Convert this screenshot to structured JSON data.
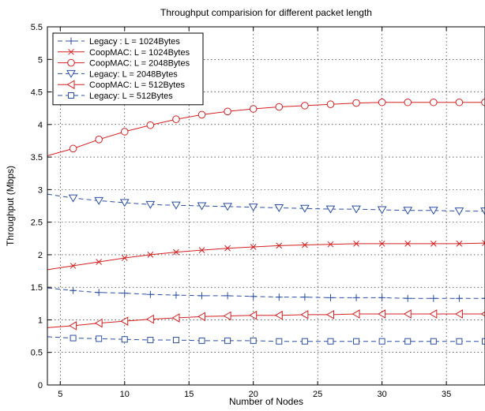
{
  "chart_data": {
    "type": "line",
    "title": "Throughput comparision for different packet length",
    "xlabel": "Number of Nodes",
    "ylabel": "Throughput (Mbps)",
    "xlim": [
      4,
      38
    ],
    "ylim": [
      0,
      5.5
    ],
    "xticks": [
      5,
      10,
      15,
      20,
      25,
      30,
      35
    ],
    "yticks": [
      0,
      0.5,
      1,
      1.5,
      2,
      2.5,
      3,
      3.5,
      4,
      4.5,
      5,
      5.5
    ],
    "grid": true,
    "legend_position": "top-left",
    "series": [
      {
        "name": "Legacy : L = 1024Bytes",
        "color": "#2a4ea3",
        "dash": "dashed",
        "marker": "plus",
        "x": [
          4,
          6,
          8,
          10,
          12,
          14,
          16,
          18,
          20,
          22,
          24,
          26,
          28,
          30,
          32,
          34,
          36,
          38
        ],
        "y": [
          1.49,
          1.45,
          1.42,
          1.41,
          1.39,
          1.38,
          1.37,
          1.37,
          1.36,
          1.35,
          1.35,
          1.34,
          1.34,
          1.34,
          1.33,
          1.33,
          1.33,
          1.33
        ]
      },
      {
        "name": "CoopMAC: L = 1024Bytes",
        "color": "#d42020",
        "dash": "solid",
        "marker": "x",
        "x": [
          4,
          6,
          8,
          10,
          12,
          14,
          16,
          18,
          20,
          22,
          24,
          26,
          28,
          30,
          32,
          34,
          36,
          38
        ],
        "y": [
          1.77,
          1.83,
          1.89,
          1.95,
          2.0,
          2.04,
          2.07,
          2.1,
          2.12,
          2.14,
          2.15,
          2.16,
          2.17,
          2.17,
          2.17,
          2.17,
          2.17,
          2.18
        ]
      },
      {
        "name": "CoopMAC: L = 2048Bytes",
        "color": "#d42020",
        "dash": "solid",
        "marker": "circle",
        "x": [
          4,
          6,
          8,
          10,
          12,
          14,
          16,
          18,
          20,
          22,
          24,
          26,
          28,
          30,
          32,
          34,
          36,
          38
        ],
        "y": [
          3.52,
          3.63,
          3.77,
          3.89,
          3.99,
          4.08,
          4.15,
          4.2,
          4.24,
          4.27,
          4.29,
          4.31,
          4.33,
          4.34,
          4.34,
          4.34,
          4.34,
          4.34
        ]
      },
      {
        "name": "Legacy: L = 2048Bytes",
        "color": "#2a4ea3",
        "dash": "dashed",
        "marker": "triangle-down",
        "x": [
          4,
          6,
          8,
          10,
          12,
          14,
          16,
          18,
          20,
          22,
          24,
          26,
          28,
          30,
          32,
          34,
          36,
          38
        ],
        "y": [
          2.93,
          2.87,
          2.83,
          2.8,
          2.77,
          2.76,
          2.75,
          2.74,
          2.73,
          2.72,
          2.71,
          2.7,
          2.7,
          2.69,
          2.68,
          2.68,
          2.67,
          2.67
        ]
      },
      {
        "name": "CoopMAC: L = 512Bytes",
        "color": "#d42020",
        "dash": "solid",
        "marker": "triangle-left",
        "x": [
          4,
          6,
          8,
          10,
          12,
          14,
          16,
          18,
          20,
          22,
          24,
          26,
          28,
          30,
          32,
          34,
          36,
          38
        ],
        "y": [
          0.88,
          0.91,
          0.95,
          0.98,
          1.01,
          1.03,
          1.05,
          1.06,
          1.07,
          1.07,
          1.08,
          1.08,
          1.09,
          1.09,
          1.09,
          1.09,
          1.09,
          1.09
        ]
      },
      {
        "name": "Legacy: L = 512Bytes",
        "color": "#2a4ea3",
        "dash": "dashed",
        "marker": "square",
        "x": [
          4,
          6,
          8,
          10,
          12,
          14,
          16,
          18,
          20,
          22,
          24,
          26,
          28,
          30,
          32,
          34,
          36,
          38
        ],
        "y": [
          0.74,
          0.72,
          0.71,
          0.7,
          0.69,
          0.69,
          0.68,
          0.68,
          0.68,
          0.67,
          0.67,
          0.67,
          0.67,
          0.67,
          0.67,
          0.67,
          0.67,
          0.67
        ]
      }
    ]
  }
}
